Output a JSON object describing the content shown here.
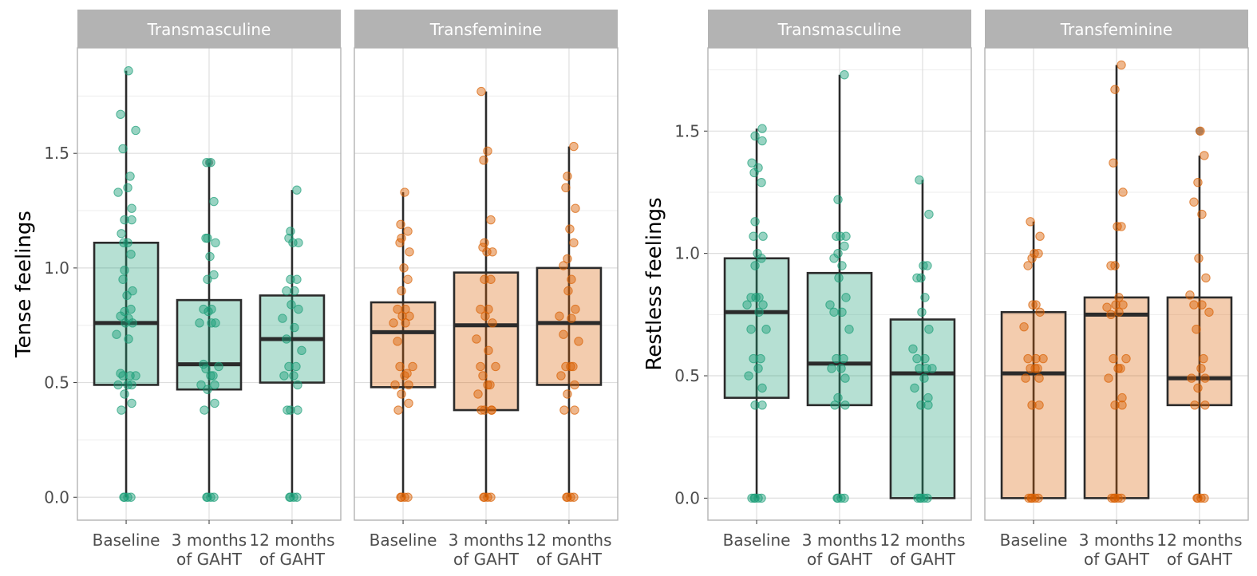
{
  "colors": {
    "transmasculine": "#1b9e77",
    "transfeminine": "#d95f02",
    "strip_fill": "#b3b3b3",
    "strip_text": "#ffffff",
    "grid": "#dedede",
    "panel_border": "#b3b3b3",
    "box_line": "#2b2b2b"
  },
  "chart_data": [
    {
      "type": "box",
      "ylabel": "Tense feelings",
      "ylim": [
        -0.1,
        1.96
      ],
      "yticks": [
        "0.0",
        "0.5",
        "1.0",
        "1.5"
      ],
      "categories": [
        [
          "Baseline"
        ],
        [
          "3 months",
          "of GAHT"
        ],
        [
          "12 months",
          "of GAHT"
        ]
      ],
      "facets": [
        {
          "label": "Transmasculine",
          "group": "transmasculine",
          "boxes": [
            {
              "q1": 0.49,
              "median": 0.76,
              "q3": 1.11,
              "wmin": 0.0,
              "wmax": 1.86
            },
            {
              "q1": 0.47,
              "median": 0.58,
              "q3": 0.86,
              "wmin": 0.0,
              "wmax": 1.46
            },
            {
              "q1": 0.5,
              "median": 0.69,
              "q3": 0.88,
              "wmin": 0.0,
              "wmax": 1.34
            }
          ],
          "points": [
            [
              0.0,
              0.0,
              0.0,
              0.0,
              0.38,
              0.41,
              0.45,
              0.49,
              0.49,
              0.49,
              0.53,
              0.53,
              0.53,
              0.54,
              0.69,
              0.71,
              0.76,
              0.76,
              0.78,
              0.79,
              0.81,
              0.82,
              0.88,
              0.9,
              0.95,
              0.99,
              1.06,
              1.11,
              1.11,
              1.15,
              1.21,
              1.21,
              1.26,
              1.33,
              1.35,
              1.4,
              1.52,
              1.6,
              1.67,
              1.86
            ],
            [
              0.0,
              0.0,
              0.0,
              0.0,
              0.38,
              0.41,
              0.47,
              0.49,
              0.49,
              0.53,
              0.53,
              0.56,
              0.57,
              0.58,
              0.76,
              0.76,
              0.76,
              0.81,
              0.82,
              0.82,
              0.95,
              0.97,
              1.05,
              1.11,
              1.13,
              1.13,
              1.29,
              1.46,
              1.46
            ],
            [
              0.0,
              0.0,
              0.0,
              0.0,
              0.38,
              0.38,
              0.38,
              0.49,
              0.53,
              0.53,
              0.57,
              0.57,
              0.64,
              0.69,
              0.74,
              0.78,
              0.82,
              0.84,
              0.9,
              0.9,
              0.95,
              0.95,
              1.11,
              1.11,
              1.13,
              1.16,
              1.34
            ]
          ],
          "outliers": [
            [],
            [
              1.46
            ],
            []
          ]
        },
        {
          "label": "Transfeminine",
          "group": "transfeminine",
          "boxes": [
            {
              "q1": 0.48,
              "median": 0.72,
              "q3": 0.85,
              "wmin": 0.0,
              "wmax": 1.33
            },
            {
              "q1": 0.38,
              "median": 0.75,
              "q3": 0.98,
              "wmin": 0.0,
              "wmax": 1.77
            },
            {
              "q1": 0.49,
              "median": 0.76,
              "q3": 1.0,
              "wmin": 0.0,
              "wmax": 1.53
            }
          ],
          "points": [
            [
              0.0,
              0.0,
              0.0,
              0.0,
              0.38,
              0.41,
              0.45,
              0.49,
              0.49,
              0.53,
              0.54,
              0.57,
              0.57,
              0.68,
              0.76,
              0.76,
              0.79,
              0.79,
              0.82,
              0.82,
              0.9,
              0.95,
              1.0,
              1.07,
              1.11,
              1.13,
              1.16,
              1.19,
              1.33
            ],
            [
              0.0,
              0.0,
              0.0,
              0.0,
              0.38,
              0.38,
              0.38,
              0.38,
              0.45,
              0.49,
              0.49,
              0.53,
              0.57,
              0.57,
              0.64,
              0.69,
              0.76,
              0.79,
              0.82,
              0.82,
              0.95,
              0.95,
              1.07,
              1.07,
              1.09,
              1.11,
              1.21,
              1.47,
              1.51,
              1.77
            ],
            [
              0.0,
              0.0,
              0.0,
              0.0,
              0.38,
              0.38,
              0.45,
              0.49,
              0.53,
              0.57,
              0.57,
              0.57,
              0.68,
              0.71,
              0.78,
              0.79,
              0.82,
              0.9,
              0.95,
              1.01,
              1.04,
              1.11,
              1.17,
              1.26,
              1.35,
              1.4,
              1.53
            ]
          ],
          "outliers": [
            [],
            [],
            []
          ]
        }
      ]
    },
    {
      "type": "box",
      "ylabel": "Restless feelings",
      "ylim": [
        -0.09,
        1.84
      ],
      "yticks": [
        "0.0",
        "0.5",
        "1.0",
        "1.5"
      ],
      "categories": [
        [
          "Baseline"
        ],
        [
          "3 months",
          "of GAHT"
        ],
        [
          "12 months",
          "of GAHT"
        ]
      ],
      "facets": [
        {
          "label": "Transmasculine",
          "group": "transmasculine",
          "boxes": [
            {
              "q1": 0.41,
              "median": 0.76,
              "q3": 0.98,
              "wmin": 0.0,
              "wmax": 1.51
            },
            {
              "q1": 0.38,
              "median": 0.55,
              "q3": 0.92,
              "wmin": 0.0,
              "wmax": 1.73
            },
            {
              "q1": 0.0,
              "median": 0.51,
              "q3": 0.73,
              "wmin": 0.0,
              "wmax": 1.3
            }
          ],
          "points": [
            [
              0.0,
              0.0,
              0.0,
              0.0,
              0.0,
              0.38,
              0.38,
              0.45,
              0.5,
              0.53,
              0.57,
              0.57,
              0.69,
              0.69,
              0.76,
              0.79,
              0.79,
              0.82,
              0.82,
              0.82,
              0.95,
              0.98,
              1.0,
              1.07,
              1.07,
              1.13,
              1.29,
              1.33,
              1.35,
              1.37,
              1.46,
              1.48,
              1.51
            ],
            [
              0.0,
              0.0,
              0.0,
              0.0,
              0.38,
              0.38,
              0.41,
              0.49,
              0.53,
              0.53,
              0.57,
              0.57,
              0.69,
              0.76,
              0.76,
              0.79,
              0.82,
              0.9,
              0.95,
              0.98,
              1.0,
              1.03,
              1.07,
              1.07,
              1.07,
              1.22,
              1.73
            ],
            [
              0.0,
              0.0,
              0.0,
              0.0,
              0.0,
              0.38,
              0.38,
              0.41,
              0.45,
              0.49,
              0.53,
              0.53,
              0.53,
              0.57,
              0.57,
              0.61,
              0.69,
              0.76,
              0.82,
              0.9,
              0.9,
              0.95,
              0.95,
              1.16,
              1.3
            ]
          ],
          "outliers": [
            [],
            [],
            []
          ]
        },
        {
          "label": "Transfeminine",
          "group": "transfeminine",
          "boxes": [
            {
              "q1": 0.0,
              "median": 0.51,
              "q3": 0.76,
              "wmin": 0.0,
              "wmax": 1.13
            },
            {
              "q1": 0.0,
              "median": 0.75,
              "q3": 0.82,
              "wmin": 0.0,
              "wmax": 1.77
            },
            {
              "q1": 0.38,
              "median": 0.49,
              "q3": 0.82,
              "wmin": 0.0,
              "wmax": 1.4
            }
          ],
          "points": [
            [
              0.0,
              0.0,
              0.0,
              0.0,
              0.0,
              0.38,
              0.38,
              0.49,
              0.49,
              0.53,
              0.53,
              0.53,
              0.57,
              0.57,
              0.57,
              0.7,
              0.76,
              0.79,
              0.79,
              0.95,
              0.98,
              1.0,
              1.0,
              1.07,
              1.13
            ],
            [
              0.0,
              0.0,
              0.0,
              0.0,
              0.0,
              0.38,
              0.38,
              0.41,
              0.49,
              0.53,
              0.53,
              0.57,
              0.57,
              0.75,
              0.76,
              0.78,
              0.79,
              0.79,
              0.82,
              0.95,
              0.95,
              1.11,
              1.11,
              1.25,
              1.37,
              1.67,
              1.77
            ],
            [
              0.0,
              0.0,
              0.0,
              0.0,
              0.38,
              0.38,
              0.45,
              0.49,
              0.49,
              0.53,
              0.57,
              0.69,
              0.76,
              0.79,
              0.79,
              0.83,
              0.9,
              0.98,
              1.16,
              1.21,
              1.29,
              1.4,
              1.5
            ]
          ],
          "outliers": [
            [],
            [],
            [
              1.5
            ]
          ]
        }
      ]
    }
  ]
}
